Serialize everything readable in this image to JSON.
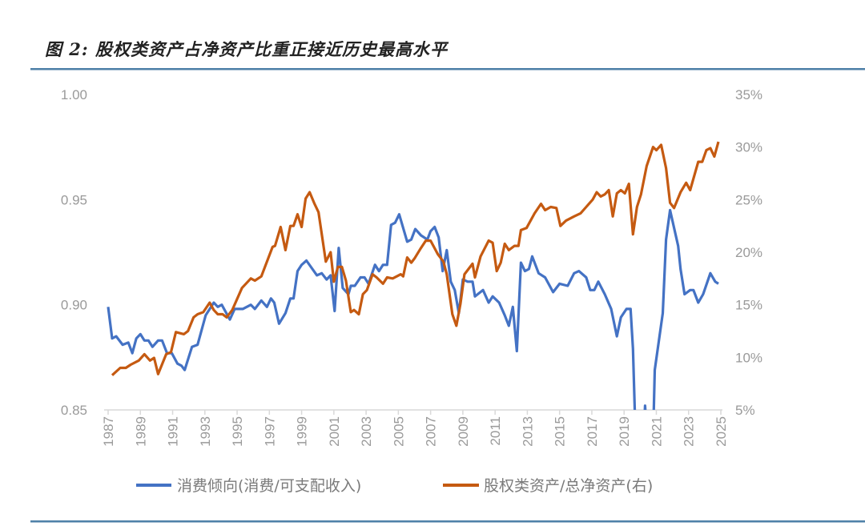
{
  "title": "图 2: 股权类资产占净资产比重正接近历史最高水平",
  "chart_data": {
    "type": "line",
    "title": "图 2: 股权类资产占净资产比重正接近历史最高水平",
    "x_range": [
      1987,
      2025
    ],
    "x_ticks": [
      "1987",
      "1989",
      "1991",
      "1993",
      "1995",
      "1997",
      "1999",
      "2001",
      "2003",
      "2005",
      "2007",
      "2009",
      "2011",
      "2013",
      "2015",
      "2017",
      "2019",
      "2021",
      "2023",
      "2025"
    ],
    "y_left": {
      "range": [
        0.85,
        1.0
      ],
      "ticks": [
        "0.85",
        "0.90",
        "0.95",
        "1.00"
      ]
    },
    "y_right": {
      "range": [
        5,
        35
      ],
      "unit": "%",
      "ticks": [
        "5%",
        "10%",
        "15%",
        "20%",
        "25%",
        "30%",
        "35%"
      ]
    },
    "grid": false,
    "legend_position": "bottom",
    "series": [
      {
        "name": "消费倾向(消费/可支配收入)",
        "axis": "left",
        "color": "#4472C4",
        "points": [
          [
            1987,
            0.899
          ],
          [
            1987.25,
            0.884
          ],
          [
            1987.5,
            0.885
          ],
          [
            1987.9,
            0.881
          ],
          [
            1988.25,
            0.882
          ],
          [
            1988.5,
            0.877
          ],
          [
            1988.75,
            0.884
          ],
          [
            1989,
            0.886
          ],
          [
            1989.25,
            0.883
          ],
          [
            1989.5,
            0.883
          ],
          [
            1989.75,
            0.88
          ],
          [
            1990.1,
            0.883
          ],
          [
            1990.35,
            0.883
          ],
          [
            1990.65,
            0.877
          ],
          [
            1990.95,
            0.877
          ],
          [
            1991.3,
            0.872
          ],
          [
            1991.55,
            0.871
          ],
          [
            1991.75,
            0.869
          ],
          [
            1992.2,
            0.88
          ],
          [
            1992.55,
            0.881
          ],
          [
            1993.05,
            0.895
          ],
          [
            1993.55,
            0.901
          ],
          [
            1993.8,
            0.899
          ],
          [
            1994.05,
            0.9
          ],
          [
            1994.55,
            0.893
          ],
          [
            1994.85,
            0.898
          ],
          [
            1995.35,
            0.898
          ],
          [
            1995.85,
            0.9
          ],
          [
            1996.1,
            0.898
          ],
          [
            1996.5,
            0.902
          ],
          [
            1996.85,
            0.899
          ],
          [
            1997.1,
            0.903
          ],
          [
            1997.3,
            0.901
          ],
          [
            1997.6,
            0.891
          ],
          [
            1998,
            0.896
          ],
          [
            1998.3,
            0.903
          ],
          [
            1998.5,
            0.903
          ],
          [
            1998.75,
            0.916
          ],
          [
            1999,
            0.919
          ],
          [
            1999.3,
            0.921
          ],
          [
            1999.95,
            0.914
          ],
          [
            2000.25,
            0.915
          ],
          [
            2000.55,
            0.912
          ],
          [
            2000.8,
            0.914
          ],
          [
            2001.05,
            0.897
          ],
          [
            2001.3,
            0.927
          ],
          [
            2001.55,
            0.908
          ],
          [
            2001.9,
            0.905
          ],
          [
            2002.05,
            0.909
          ],
          [
            2002.3,
            0.909
          ],
          [
            2002.65,
            0.913
          ],
          [
            2002.9,
            0.913
          ],
          [
            2003.15,
            0.91
          ],
          [
            2003.55,
            0.919
          ],
          [
            2003.8,
            0.916
          ],
          [
            2004.05,
            0.919
          ],
          [
            2004.3,
            0.919
          ],
          [
            2004.55,
            0.938
          ],
          [
            2004.8,
            0.939
          ],
          [
            2005.05,
            0.943
          ],
          [
            2005.55,
            0.93
          ],
          [
            2005.8,
            0.931
          ],
          [
            2006.05,
            0.936
          ],
          [
            2006.4,
            0.933
          ],
          [
            2006.8,
            0.931
          ],
          [
            2007,
            0.935
          ],
          [
            2007.25,
            0.937
          ],
          [
            2007.5,
            0.932
          ],
          [
            2007.75,
            0.916
          ],
          [
            2008,
            0.926
          ],
          [
            2008.25,
            0.911
          ],
          [
            2008.5,
            0.907
          ],
          [
            2008.75,
            0.896
          ],
          [
            2009,
            0.912
          ],
          [
            2009.3,
            0.911
          ],
          [
            2009.6,
            0.911
          ],
          [
            2009.75,
            0.904
          ],
          [
            2010.25,
            0.907
          ],
          [
            2010.6,
            0.901
          ],
          [
            2010.85,
            0.904
          ],
          [
            2011.25,
            0.901
          ],
          [
            2011.6,
            0.895
          ],
          [
            2011.85,
            0.89
          ],
          [
            2012.1,
            0.899
          ],
          [
            2012.35,
            0.878
          ],
          [
            2012.6,
            0.92
          ],
          [
            2012.85,
            0.916
          ],
          [
            2013.1,
            0.917
          ],
          [
            2013.3,
            0.923
          ],
          [
            2013.7,
            0.915
          ],
          [
            2014.1,
            0.913
          ],
          [
            2014.6,
            0.906
          ],
          [
            2015,
            0.91
          ],
          [
            2015.5,
            0.909
          ],
          [
            2015.9,
            0.915
          ],
          [
            2016.2,
            0.916
          ],
          [
            2016.65,
            0.913
          ],
          [
            2016.9,
            0.907
          ],
          [
            2017.15,
            0.907
          ],
          [
            2017.4,
            0.911
          ],
          [
            2017.8,
            0.905
          ],
          [
            2018.2,
            0.898
          ],
          [
            2018.55,
            0.885
          ],
          [
            2018.8,
            0.894
          ],
          [
            2019.15,
            0.898
          ],
          [
            2019.4,
            0.898
          ],
          [
            2019.55,
            0.879
          ],
          [
            2019.7,
            0.84
          ],
          [
            2020.0,
            0.8
          ],
          [
            2020.3,
            0.852
          ],
          [
            2020.4,
            0.84
          ],
          [
            2020.75,
            0.82
          ],
          [
            2020.9,
            0.869
          ],
          [
            2021.4,
            0.896
          ],
          [
            2021.6,
            0.931
          ],
          [
            2021.85,
            0.945
          ],
          [
            2022.35,
            0.928
          ],
          [
            2022.5,
            0.917
          ],
          [
            2022.75,
            0.905
          ],
          [
            2023.1,
            0.907
          ],
          [
            2023.3,
            0.907
          ],
          [
            2023.6,
            0.901
          ],
          [
            2023.9,
            0.905
          ],
          [
            2024.35,
            0.915
          ],
          [
            2024.65,
            0.911
          ],
          [
            2024.85,
            0.91
          ]
        ]
      },
      {
        "name": "股权类资产/总净资产(右)",
        "axis": "right",
        "color": "#C55A11",
        "points": [
          [
            1987.25,
            8.3
          ],
          [
            1987.75,
            9.0
          ],
          [
            1988.1,
            9.0
          ],
          [
            1988.4,
            9.3
          ],
          [
            1988.9,
            9.7
          ],
          [
            1989.25,
            10.3
          ],
          [
            1989.6,
            9.7
          ],
          [
            1989.85,
            9.95
          ],
          [
            1990.1,
            8.4
          ],
          [
            1990.6,
            10.3
          ],
          [
            1990.9,
            10.5
          ],
          [
            1991.2,
            12.4
          ],
          [
            1991.7,
            12.2
          ],
          [
            1991.95,
            12.5
          ],
          [
            1992.3,
            13.8
          ],
          [
            1992.55,
            14.1
          ],
          [
            1992.9,
            14.3
          ],
          [
            1993.3,
            15.2
          ],
          [
            1993.55,
            14.5
          ],
          [
            1993.8,
            14.1
          ],
          [
            1994.1,
            14.1
          ],
          [
            1994.35,
            13.8
          ],
          [
            1994.7,
            14.5
          ],
          [
            1995.3,
            16.6
          ],
          [
            1995.85,
            17.5
          ],
          [
            1996.1,
            17.3
          ],
          [
            1996.5,
            17.7
          ],
          [
            1996.85,
            19.1
          ],
          [
            1997.2,
            20.5
          ],
          [
            1997.35,
            20.6
          ],
          [
            1997.7,
            22.4
          ],
          [
            1998,
            20.2
          ],
          [
            1998.3,
            22.5
          ],
          [
            1998.5,
            22.5
          ],
          [
            1998.75,
            23.6
          ],
          [
            1999,
            22.4
          ],
          [
            1999.25,
            25.1
          ],
          [
            1999.5,
            25.7
          ],
          [
            1999.8,
            24.6
          ],
          [
            2000.05,
            23.8
          ],
          [
            2000.5,
            19.1
          ],
          [
            2000.8,
            20.0
          ],
          [
            2001,
            17.2
          ],
          [
            2001.25,
            18.6
          ],
          [
            2001.5,
            18.6
          ],
          [
            2001.75,
            17.3
          ],
          [
            2002.05,
            14.3
          ],
          [
            2002.25,
            14.5
          ],
          [
            2002.55,
            14.1
          ],
          [
            2002.8,
            16.0
          ],
          [
            2003.05,
            16.4
          ],
          [
            2003.4,
            17.9
          ],
          [
            2003.65,
            17.6
          ],
          [
            2004.05,
            17.0
          ],
          [
            2004.3,
            17.6
          ],
          [
            2004.65,
            17.5
          ],
          [
            2005.15,
            17.9
          ],
          [
            2005.3,
            17.7
          ],
          [
            2005.55,
            19.5
          ],
          [
            2005.8,
            19.0
          ],
          [
            2006,
            19.4
          ],
          [
            2006.4,
            20.4
          ],
          [
            2006.7,
            21.1
          ],
          [
            2007,
            21.1
          ],
          [
            2007.45,
            19.8
          ],
          [
            2007.8,
            19.1
          ],
          [
            2008,
            17.9
          ],
          [
            2008.35,
            14.1
          ],
          [
            2008.6,
            13.0
          ],
          [
            2008.85,
            15.1
          ],
          [
            2009.1,
            17.9
          ],
          [
            2009.6,
            18.9
          ],
          [
            2009.75,
            17.6
          ],
          [
            2010.1,
            19.6
          ],
          [
            2010.6,
            21.1
          ],
          [
            2010.85,
            20.9
          ],
          [
            2011.1,
            18.2
          ],
          [
            2011.35,
            19.0
          ],
          [
            2011.6,
            20.8
          ],
          [
            2011.85,
            20.2
          ],
          [
            2012.2,
            20.6
          ],
          [
            2012.45,
            20.6
          ],
          [
            2012.6,
            22.1
          ],
          [
            2012.95,
            22.3
          ],
          [
            2013.45,
            23.7
          ],
          [
            2013.85,
            24.6
          ],
          [
            2014.1,
            24.0
          ],
          [
            2014.45,
            24.3
          ],
          [
            2014.8,
            24.2
          ],
          [
            2015.05,
            22.5
          ],
          [
            2015.4,
            23.0
          ],
          [
            2015.9,
            23.4
          ],
          [
            2016.3,
            23.7
          ],
          [
            2016.65,
            24.3
          ],
          [
            2017.05,
            25.0
          ],
          [
            2017.3,
            25.7
          ],
          [
            2017.55,
            25.3
          ],
          [
            2017.8,
            25.5
          ],
          [
            2018.05,
            25.9
          ],
          [
            2018.3,
            23.4
          ],
          [
            2018.55,
            25.6
          ],
          [
            2018.8,
            25.9
          ],
          [
            2019.05,
            25.6
          ],
          [
            2019.3,
            26.5
          ],
          [
            2019.55,
            21.7
          ],
          [
            2019.8,
            24.3
          ],
          [
            2020.05,
            25.5
          ],
          [
            2020.4,
            28.2
          ],
          [
            2020.8,
            30.0
          ],
          [
            2021,
            29.7
          ],
          [
            2021.3,
            30.2
          ],
          [
            2021.6,
            28.0
          ],
          [
            2021.85,
            24.7
          ],
          [
            2022.1,
            24.2
          ],
          [
            2022.5,
            25.7
          ],
          [
            2022.85,
            26.6
          ],
          [
            2023.1,
            25.9
          ],
          [
            2023.6,
            28.6
          ],
          [
            2023.85,
            28.6
          ],
          [
            2024.1,
            29.7
          ],
          [
            2024.35,
            29.9
          ],
          [
            2024.6,
            29.1
          ],
          [
            2024.85,
            30.5
          ]
        ]
      }
    ]
  }
}
